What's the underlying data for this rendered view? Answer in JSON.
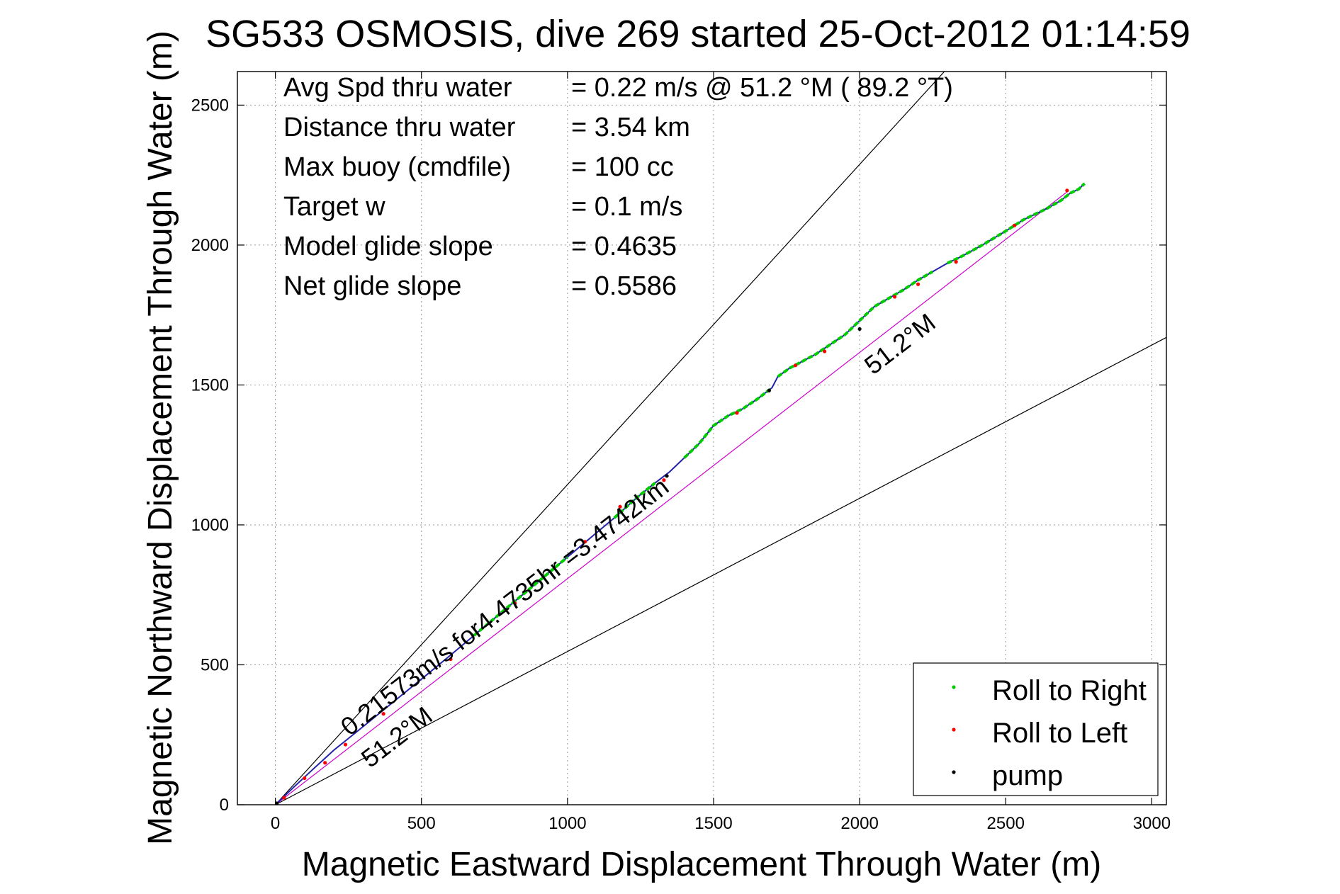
{
  "chart_data": {
    "type": "line",
    "title": "SG533 OSMOSIS, dive 269 started 25-Oct-2012 01:14:59",
    "xlabel": "Magnetic Eastward Displacement Through Water (m)",
    "ylabel": "Magnetic Northward Displacement Through Water (m)",
    "xlim": [
      -130,
      3050
    ],
    "ylim": [
      0,
      2620
    ],
    "xticks": [
      0,
      500,
      1000,
      1500,
      2000,
      2500,
      3000
    ],
    "yticks": [
      0,
      500,
      1000,
      1500,
      2000,
      2500
    ],
    "grid": true,
    "stats": [
      {
        "label": "Avg Spd thru water",
        "value": "=  0.22 m/s @  51.2 °M ( 89.2 °T)"
      },
      {
        "label": "Distance thru water",
        "value": "=  3.54 km"
      },
      {
        "label": "Max buoy (cmdfile)",
        "value": "= 100 cc"
      },
      {
        "label": "Target w",
        "value": "= 0.1 m/s"
      },
      {
        "label": "Model glide slope",
        "value": "= 0.4635"
      },
      {
        "label": "Net glide slope",
        "value": "= 0.5586"
      }
    ],
    "annotations": {
      "speed_label": "0.21573m/s for4.4735hr =3.4742km",
      "heading_upper": "51.2°M",
      "heading_lower": "51.2°M"
    },
    "reference_lines": [
      {
        "from": [
          0,
          0
        ],
        "to": [
          2290,
          2620
        ],
        "color": "#000000"
      },
      {
        "from": [
          0,
          0
        ],
        "to": [
          3050,
          1670
        ],
        "color": "#000000"
      },
      {
        "from": [
          0,
          0
        ],
        "to": [
          2710,
          2190
        ],
        "color": "#cc00cc"
      }
    ],
    "track": {
      "x": [
        0,
        60,
        130,
        200,
        280,
        360,
        440,
        520,
        600,
        680,
        760,
        840,
        920,
        1000,
        1080,
        1160,
        1240,
        1300,
        1350,
        1400,
        1450,
        1500,
        1550,
        1600,
        1650,
        1700,
        1720,
        1760,
        1850,
        1950,
        2050,
        2100,
        2150,
        2200,
        2250,
        2300,
        2350,
        2420,
        2500,
        2560,
        2600,
        2640,
        2690,
        2720,
        2750,
        2770
      ],
      "y": [
        0,
        60,
        128,
        195,
        262,
        330,
        398,
        466,
        535,
        605,
        675,
        745,
        815,
        885,
        955,
        1025,
        1100,
        1150,
        1190,
        1240,
        1290,
        1355,
        1390,
        1415,
        1450,
        1490,
        1530,
        1560,
        1610,
        1680,
        1780,
        1810,
        1840,
        1875,
        1905,
        1935,
        1960,
        2000,
        2050,
        2090,
        2110,
        2130,
        2160,
        2185,
        2200,
        2220
      ],
      "color": "#2222aa"
    },
    "series": [
      {
        "name": "Roll to Right",
        "color": "#00cc00",
        "segments": [
          [
            9,
            13
          ],
          [
            15,
            17
          ],
          [
            19,
            25
          ],
          [
            26,
            34
          ],
          [
            35,
            45
          ]
        ]
      },
      {
        "name": "Roll to Left",
        "color": "#ff0000",
        "points": [
          [
            30,
            25
          ],
          [
            100,
            95
          ],
          [
            170,
            150
          ],
          [
            240,
            215
          ],
          [
            370,
            325
          ],
          [
            600,
            520
          ],
          [
            820,
            720
          ],
          [
            1060,
            940
          ],
          [
            1180,
            1065
          ],
          [
            1330,
            1160
          ],
          [
            1580,
            1400
          ],
          [
            1780,
            1570
          ],
          [
            1880,
            1620
          ],
          [
            2120,
            1815
          ],
          [
            2200,
            1860
          ],
          [
            2330,
            1940
          ],
          [
            2530,
            2070
          ],
          [
            2710,
            2195
          ]
        ]
      },
      {
        "name": "pump",
        "color": "#000000",
        "points": [
          [
            5,
            5
          ],
          [
            1340,
            1175
          ],
          [
            1690,
            1480
          ],
          [
            2000,
            1700
          ]
        ]
      }
    ]
  }
}
